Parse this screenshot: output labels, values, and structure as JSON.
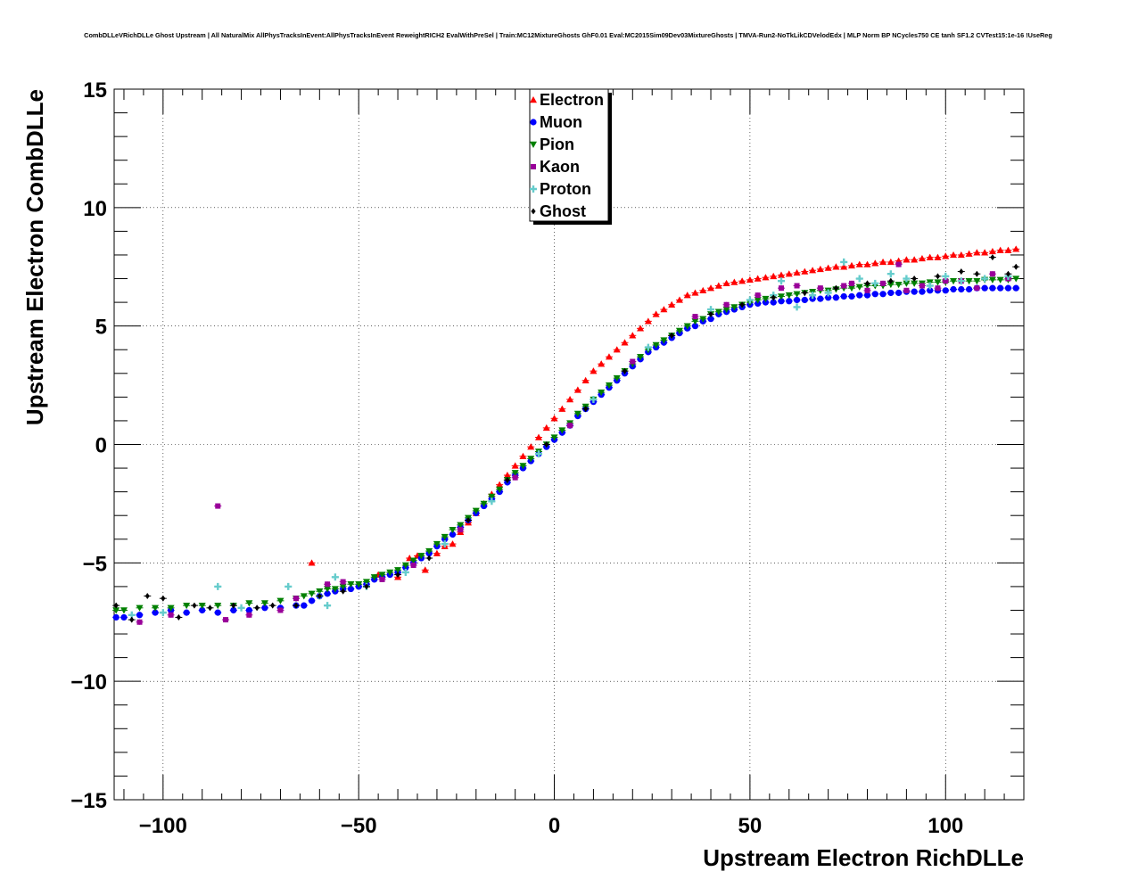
{
  "chart_data": {
    "type": "scatter",
    "title": "CombDLLeVRichDLLe Ghost Upstream | All NaturalMix AllPhysTracksInEvent:AllPhysTracksInEvent ReweightRICH2 EvalWithPreSel | Train:MC12MixtureGhosts GhF0.01 Eval:MC2015Sim09Dev03MixtureGhosts | TMVA-Run2-NoTkLikCDVelodEdx | MLP Norm BP NCycles750 CE tanh SF1.2 CVTest15:1e-16 !UseReg",
    "xlabel": "Upstream Electron RichDLLe",
    "ylabel": "Upstream Electron CombDLLe",
    "xlim": [
      -112.5,
      120
    ],
    "ylim": [
      -15,
      15
    ],
    "xticks": [
      -100,
      -50,
      0,
      50,
      100
    ],
    "xtick_labels": [
      "−100",
      "−50",
      "0",
      "50",
      "100"
    ],
    "yticks": [
      -15,
      -10,
      -5,
      0,
      5,
      10,
      15
    ],
    "ytick_labels": [
      "−15",
      "−10",
      "−5",
      "0",
      "5",
      "10",
      "15"
    ],
    "grid": true,
    "legend_position": "top-center",
    "series": [
      {
        "name": "Electron",
        "color": "#ff0000",
        "marker": "triangle-up",
        "x": [
          -62,
          -45,
          -40,
          -37,
          -35,
          -33,
          -30,
          -28,
          -26,
          -24,
          -22,
          -20,
          -18,
          -16,
          -14,
          -12,
          -10,
          -8,
          -6,
          -4,
          -2,
          0,
          2,
          4,
          6,
          8,
          10,
          12,
          14,
          16,
          18,
          20,
          22,
          24,
          26,
          28,
          30,
          32,
          34,
          36,
          38,
          40,
          42,
          44,
          46,
          48,
          50,
          52,
          54,
          56,
          58,
          60,
          62,
          64,
          66,
          68,
          70,
          72,
          74,
          76,
          78,
          80,
          82,
          84,
          86,
          88,
          90,
          92,
          94,
          96,
          98,
          100,
          102,
          104,
          106,
          108,
          110,
          112,
          114,
          116,
          118
        ],
        "y": [
          -5.0,
          -5.5,
          -5.6,
          -4.8,
          -4.7,
          -5.3,
          -4.6,
          -4.3,
          -4.2,
          -3.7,
          -3.3,
          -2.9,
          -2.5,
          -2.1,
          -1.7,
          -1.3,
          -0.9,
          -0.5,
          -0.1,
          0.3,
          0.7,
          1.1,
          1.5,
          1.9,
          2.3,
          2.7,
          3.1,
          3.4,
          3.7,
          4.0,
          4.3,
          4.6,
          4.9,
          5.2,
          5.5,
          5.7,
          5.9,
          6.1,
          6.3,
          6.4,
          6.5,
          6.6,
          6.7,
          6.8,
          6.85,
          6.9,
          6.95,
          7.0,
          7.05,
          7.1,
          7.15,
          7.2,
          7.25,
          7.3,
          7.35,
          7.4,
          7.45,
          7.5,
          7.5,
          7.55,
          7.6,
          7.6,
          7.65,
          7.7,
          7.7,
          7.75,
          7.8,
          7.8,
          7.85,
          7.9,
          7.9,
          7.95,
          8.0,
          8.0,
          8.05,
          8.1,
          8.1,
          8.15,
          8.2,
          8.2,
          8.25
        ]
      },
      {
        "name": "Muon",
        "color": "#0000ff",
        "marker": "circle",
        "x": [
          -112,
          -110,
          -106,
          -102,
          -98,
          -94,
          -90,
          -86,
          -82,
          -78,
          -74,
          -70,
          -66,
          -64,
          -62,
          -60,
          -58,
          -56,
          -54,
          -52,
          -50,
          -48,
          -46,
          -44,
          -42,
          -40,
          -38,
          -36,
          -34,
          -32,
          -30,
          -28,
          -26,
          -24,
          -22,
          -20,
          -18,
          -16,
          -14,
          -12,
          -10,
          -8,
          -6,
          -4,
          -2,
          0,
          2,
          4,
          6,
          8,
          10,
          12,
          14,
          16,
          18,
          20,
          22,
          24,
          26,
          28,
          30,
          32,
          34,
          36,
          38,
          40,
          42,
          44,
          46,
          48,
          50,
          52,
          54,
          56,
          58,
          60,
          62,
          64,
          66,
          68,
          70,
          72,
          74,
          76,
          78,
          80,
          82,
          84,
          86,
          88,
          90,
          92,
          94,
          96,
          98,
          100,
          102,
          104,
          106,
          108,
          110,
          112,
          114,
          116,
          118
        ],
        "y": [
          -7.3,
          -7.3,
          -7.2,
          -7.1,
          -7.0,
          -7.1,
          -7.0,
          -7.1,
          -7.0,
          -7.0,
          -6.9,
          -6.9,
          -6.8,
          -6.8,
          -6.6,
          -6.4,
          -6.3,
          -6.2,
          -6.1,
          -6.1,
          -6.0,
          -5.9,
          -5.7,
          -5.6,
          -5.5,
          -5.4,
          -5.2,
          -5.0,
          -4.8,
          -4.6,
          -4.3,
          -4.0,
          -3.8,
          -3.5,
          -3.2,
          -2.9,
          -2.6,
          -2.3,
          -2.0,
          -1.6,
          -1.3,
          -1.0,
          -0.7,
          -0.4,
          -0.1,
          0.2,
          0.5,
          0.8,
          1.2,
          1.5,
          1.8,
          2.1,
          2.4,
          2.7,
          3.0,
          3.3,
          3.6,
          3.9,
          4.1,
          4.3,
          4.5,
          4.7,
          4.9,
          5.0,
          5.2,
          5.3,
          5.5,
          5.6,
          5.7,
          5.8,
          5.9,
          5.95,
          6.0,
          6.0,
          6.05,
          6.05,
          6.1,
          6.1,
          6.15,
          6.15,
          6.2,
          6.2,
          6.25,
          6.25,
          6.3,
          6.3,
          6.35,
          6.35,
          6.4,
          6.4,
          6.45,
          6.45,
          6.45,
          6.5,
          6.5,
          6.5,
          6.55,
          6.55,
          6.55,
          6.6,
          6.6,
          6.6,
          6.6,
          6.6,
          6.6
        ]
      },
      {
        "name": "Pion",
        "color": "#008000",
        "marker": "triangle-down",
        "x": [
          -112,
          -110,
          -106,
          -102,
          -98,
          -94,
          -90,
          -86,
          -82,
          -78,
          -74,
          -70,
          -66,
          -64,
          -62,
          -60,
          -58,
          -56,
          -54,
          -52,
          -50,
          -48,
          -46,
          -44,
          -42,
          -40,
          -38,
          -36,
          -34,
          -32,
          -30,
          -28,
          -26,
          -24,
          -22,
          -20,
          -18,
          -16,
          -14,
          -12,
          -10,
          -8,
          -6,
          -4,
          -2,
          0,
          2,
          4,
          6,
          8,
          10,
          12,
          14,
          16,
          18,
          20,
          22,
          24,
          26,
          28,
          30,
          32,
          34,
          36,
          38,
          40,
          42,
          44,
          46,
          48,
          50,
          52,
          54,
          56,
          58,
          60,
          62,
          64,
          66,
          68,
          70,
          72,
          74,
          76,
          78,
          80,
          82,
          84,
          86,
          88,
          90,
          92,
          94,
          96,
          98,
          100,
          102,
          104,
          106,
          108,
          110,
          112,
          114,
          116,
          118
        ],
        "y": [
          -7.0,
          -7.0,
          -6.9,
          -6.9,
          -6.9,
          -6.8,
          -6.8,
          -6.8,
          -6.8,
          -6.7,
          -6.7,
          -6.6,
          -6.5,
          -6.4,
          -6.3,
          -6.2,
          -6.1,
          -6.1,
          -6.0,
          -5.9,
          -5.9,
          -5.8,
          -5.6,
          -5.5,
          -5.4,
          -5.3,
          -5.1,
          -4.9,
          -4.7,
          -4.5,
          -4.2,
          -3.9,
          -3.6,
          -3.4,
          -3.1,
          -2.8,
          -2.5,
          -2.2,
          -1.9,
          -1.5,
          -1.2,
          -0.9,
          -0.6,
          -0.3,
          0.0,
          0.3,
          0.6,
          0.9,
          1.3,
          1.6,
          1.9,
          2.2,
          2.5,
          2.8,
          3.1,
          3.4,
          3.7,
          4.0,
          4.2,
          4.4,
          4.6,
          4.8,
          5.0,
          5.2,
          5.3,
          5.5,
          5.6,
          5.7,
          5.8,
          5.9,
          6.0,
          6.1,
          6.15,
          6.2,
          6.25,
          6.3,
          6.35,
          6.4,
          6.45,
          6.5,
          6.5,
          6.55,
          6.6,
          6.6,
          6.65,
          6.7,
          6.7,
          6.7,
          6.75,
          6.75,
          6.8,
          6.8,
          6.8,
          6.85,
          6.85,
          6.85,
          6.9,
          6.9,
          6.9,
          6.9,
          6.95,
          6.95,
          6.95,
          6.95,
          7.0
        ]
      },
      {
        "name": "Kaon",
        "color": "#990099",
        "marker": "square",
        "x": [
          -106,
          -98,
          -86,
          -84,
          -78,
          -70,
          -66,
          -58,
          -54,
          -44,
          -36,
          -24,
          -10,
          4,
          20,
          36,
          44,
          52,
          58,
          62,
          68,
          74,
          76,
          80,
          84,
          88,
          90,
          94,
          98,
          100,
          104,
          108,
          112,
          116
        ],
        "y": [
          -7.5,
          -7.2,
          -2.6,
          -7.4,
          -7.2,
          -7.0,
          -6.5,
          -5.9,
          -5.8,
          -5.7,
          -5.1,
          -3.6,
          -1.4,
          0.8,
          3.5,
          5.4,
          5.9,
          6.3,
          6.6,
          6.7,
          6.6,
          6.7,
          6.8,
          6.5,
          6.8,
          7.6,
          6.5,
          6.7,
          6.6,
          6.9,
          6.9,
          6.6,
          7.2,
          7.0
        ]
      },
      {
        "name": "Proton",
        "color": "#66cccc",
        "marker": "plus",
        "x": [
          -108,
          -100,
          -86,
          -80,
          -68,
          -60,
          -58,
          -56,
          -48,
          -38,
          -28,
          -16,
          -4,
          10,
          24,
          40,
          50,
          56,
          58,
          62,
          66,
          70,
          74,
          78,
          82,
          86,
          90,
          96,
          100,
          104,
          110,
          116
        ],
        "y": [
          -7.2,
          -7.1,
          -6.0,
          -6.9,
          -6.0,
          -6.4,
          -6.8,
          -5.6,
          -6.0,
          -5.4,
          -4.2,
          -2.4,
          -0.4,
          1.9,
          4.1,
          5.7,
          6.1,
          6.3,
          6.9,
          5.8,
          6.3,
          6.4,
          7.7,
          7.0,
          6.8,
          7.2,
          7.0,
          6.7,
          7.1,
          6.9,
          7.0,
          7.1
        ]
      },
      {
        "name": "Ghost",
        "color": "#000000",
        "marker": "diamond",
        "x": [
          -112,
          -108,
          -104,
          -100,
          -96,
          -92,
          -88,
          -82,
          -76,
          -72,
          -66,
          -60,
          -54,
          -48,
          -40,
          -32,
          -22,
          -12,
          -2,
          8,
          18,
          30,
          40,
          48,
          56,
          64,
          72,
          80,
          86,
          92,
          98,
          104,
          108,
          112,
          116,
          118
        ],
        "y": [
          -6.8,
          -7.4,
          -6.4,
          -6.5,
          -7.3,
          -6.8,
          -6.9,
          -6.8,
          -6.9,
          -6.8,
          -6.8,
          -6.4,
          -6.2,
          -6.0,
          -5.5,
          -4.8,
          -3.2,
          -1.5,
          0.0,
          1.5,
          3.1,
          4.6,
          5.5,
          5.9,
          6.2,
          6.4,
          6.6,
          6.8,
          6.9,
          7.0,
          7.1,
          7.3,
          7.2,
          7.9,
          7.2,
          7.5
        ]
      }
    ]
  }
}
